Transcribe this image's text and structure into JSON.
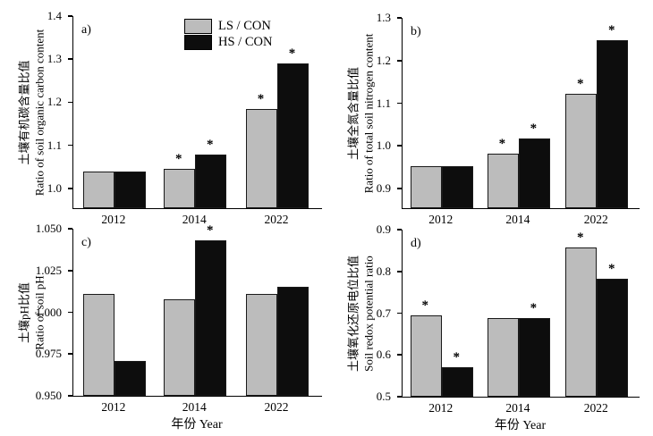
{
  "figure": {
    "sig_marker": "*",
    "xlabel": "年份 Year",
    "background": "#ffffff",
    "legend": {
      "position": "top-center-of-panel-a",
      "items": [
        {
          "label": "LS / CON",
          "color": "#bcbcbc"
        },
        {
          "label": "HS / CON",
          "color": "#0d0d0d"
        }
      ]
    }
  },
  "chart_data": [
    {
      "type": "bar",
      "panel_label": "a)",
      "ylabel_zh": "土壤有机碳含量比值",
      "ylabel_en": "Ratio of soil organic carbon content",
      "categories": [
        "2012",
        "2014",
        "2022"
      ],
      "ylim": [
        0.954,
        1.4
      ],
      "ytick_values": [
        1.0,
        1.1,
        1.2,
        1.3,
        1.4
      ],
      "ytick_labels": [
        "1.0",
        "1.1",
        "1.2",
        "1.3",
        "1.4"
      ],
      "grid": false,
      "show_xlabel": false,
      "show_legend": true,
      "series": [
        {
          "name": "LS / CON",
          "color": "#bcbcbc",
          "values": [
            1.04,
            1.045,
            1.185
          ],
          "significant": [
            false,
            true,
            true
          ]
        },
        {
          "name": "HS / CON",
          "color": "#0d0d0d",
          "values": [
            1.04,
            1.078,
            1.291
          ],
          "significant": [
            false,
            true,
            true
          ]
        }
      ]
    },
    {
      "type": "bar",
      "panel_label": "b)",
      "ylabel_zh": "土壤全氮含量比值",
      "ylabel_en": "Ratio of total soil nitrogen content",
      "categories": [
        "2012",
        "2014",
        "2022"
      ],
      "ylim": [
        0.854,
        1.3
      ],
      "ytick_values": [
        0.9,
        1.0,
        1.1,
        1.2,
        1.3
      ],
      "ytick_labels": [
        "0.9",
        "1.0",
        "1.1",
        "1.2",
        "1.3"
      ],
      "grid": false,
      "show_xlabel": false,
      "show_legend": false,
      "series": [
        {
          "name": "LS / CON",
          "color": "#bcbcbc",
          "values": [
            0.952,
            0.982,
            1.122
          ],
          "significant": [
            false,
            true,
            true
          ]
        },
        {
          "name": "HS / CON",
          "color": "#0d0d0d",
          "values": [
            0.952,
            1.018,
            1.248
          ],
          "significant": [
            false,
            true,
            true
          ]
        }
      ]
    },
    {
      "type": "bar",
      "panel_label": "c)",
      "ylabel_zh": "土壤pH比值",
      "ylabel_en": "Ratio of soil pH",
      "categories": [
        "2012",
        "2014",
        "2022"
      ],
      "ylim": [
        0.95,
        1.05
      ],
      "ytick_values": [
        0.95,
        0.975,
        1.0,
        1.025,
        1.05
      ],
      "ytick_labels": [
        "0.950",
        "0.975",
        "1.000",
        "1.025",
        "1.050"
      ],
      "grid": false,
      "show_xlabel": true,
      "show_legend": false,
      "series": [
        {
          "name": "LS / CON",
          "color": "#bcbcbc",
          "values": [
            1.011,
            1.008,
            1.011
          ],
          "significant": [
            false,
            false,
            false
          ]
        },
        {
          "name": "HS / CON",
          "color": "#0d0d0d",
          "values": [
            0.971,
            1.043,
            1.015
          ],
          "significant": [
            false,
            true,
            false
          ]
        }
      ]
    },
    {
      "type": "bar",
      "panel_label": "d)",
      "ylabel_zh": "土壤氧化还原电位比值",
      "ylabel_en": "Soil redox potential ratio",
      "categories": [
        "2012",
        "2014",
        "2022"
      ],
      "ylim": [
        0.5,
        0.9
      ],
      "ytick_values": [
        0.5,
        0.6,
        0.7,
        0.8,
        0.9
      ],
      "ytick_labels": [
        "0.5",
        "0.6",
        "0.7",
        "0.8",
        "0.9"
      ],
      "grid": false,
      "show_xlabel": true,
      "show_legend": false,
      "series": [
        {
          "name": "LS / CON",
          "color": "#bcbcbc",
          "values": [
            0.695,
            0.689,
            0.858
          ],
          "significant": [
            true,
            false,
            true
          ]
        },
        {
          "name": "HS / CON",
          "color": "#0d0d0d",
          "values": [
            0.571,
            0.689,
            0.782
          ],
          "significant": [
            true,
            true,
            true
          ]
        }
      ]
    }
  ]
}
